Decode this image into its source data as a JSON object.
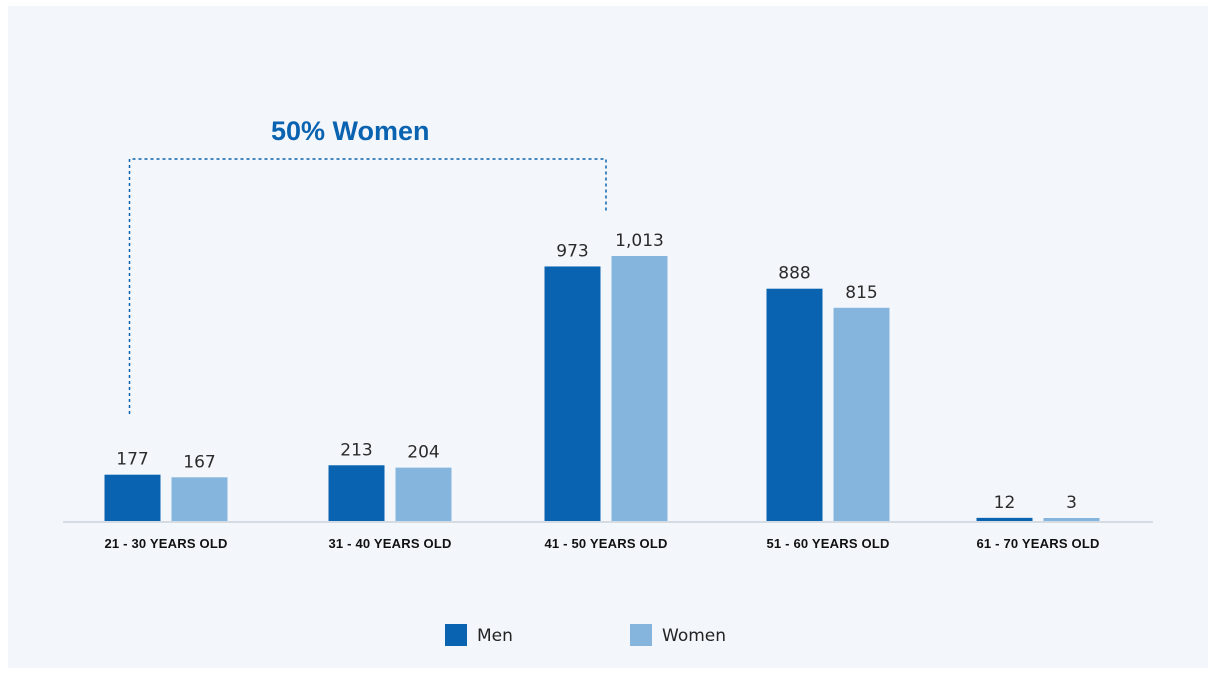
{
  "chart_data": {
    "type": "bar",
    "categories": [
      "21 - 30 YEARS OLD",
      "31 - 40 YEARS OLD",
      "41 - 50 YEARS OLD",
      "51 - 60 YEARS OLD",
      "61 - 70 YEARS OLD"
    ],
    "series": [
      {
        "name": "Men",
        "values": [
          177,
          213,
          973,
          888,
          12
        ],
        "labels": [
          "177",
          "213",
          "973",
          "888",
          "12"
        ],
        "color": "#0a63b0"
      },
      {
        "name": "Women",
        "values": [
          167,
          204,
          1013,
          815,
          3
        ],
        "labels": [
          "167",
          "204",
          "1,013",
          "815",
          "3"
        ],
        "color": "#85b5dc"
      }
    ],
    "title": "",
    "xlabel": "",
    "ylabel": "",
    "ylim": [
      0,
      1013
    ],
    "grid": false,
    "legend": "bottom",
    "annotation": {
      "text": "50% Women",
      "color": "#0a63b0",
      "spans": [
        "21 - 30 YEARS OLD",
        "41 - 50 YEARS OLD"
      ]
    }
  }
}
